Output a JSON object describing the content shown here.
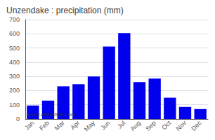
{
  "chart_data": {
    "type": "bar",
    "title": "Unzendake : precipitation (mm)",
    "categories": [
      "Jan",
      "Feb",
      "Mar",
      "Apr",
      "May",
      "Jun",
      "Jul",
      "Aug",
      "Sep",
      "Oct",
      "Nov",
      "Dec"
    ],
    "values": [
      95,
      130,
      230,
      245,
      300,
      510,
      605,
      260,
      285,
      150,
      85,
      70
    ],
    "color": "#0000ee",
    "ylim": [
      0,
      700
    ],
    "yticks": [
      0,
      100,
      200,
      300,
      400,
      500,
      600,
      700
    ],
    "grid": true,
    "annotation": "www.allmetsat.com"
  }
}
